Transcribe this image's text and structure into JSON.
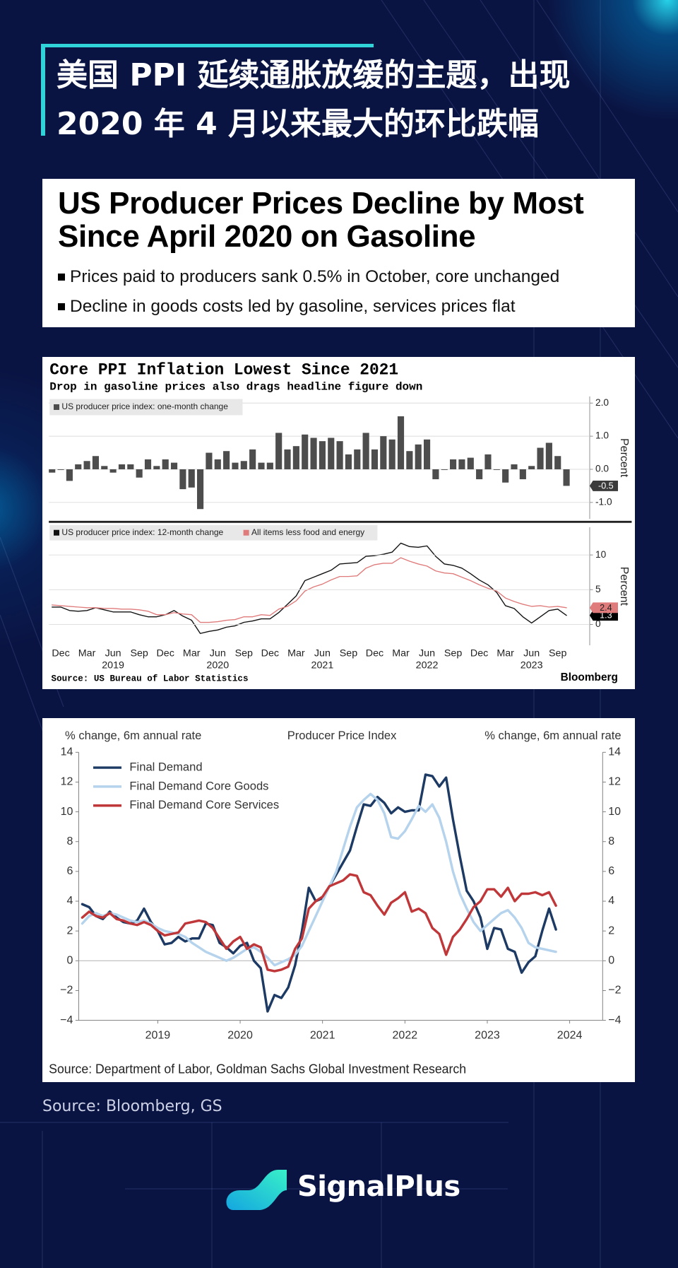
{
  "header": {
    "title_lines": [
      "美国 PPI 延续通胀放缓的主题，出现",
      "2020 年 4 月以来最大的环比跌幅"
    ]
  },
  "news": {
    "headline_lines": [
      "US Producer Prices Decline by Most",
      "Since April 2020 on Gasoline"
    ],
    "bullets": [
      "Prices paid to producers sank 0.5% in October, core unchanged",
      "Decline in goods costs led by gasoline, services prices flat"
    ]
  },
  "chart_data": [
    {
      "type": "bar",
      "title": "Core PPI Inflation Lowest Since 2021",
      "subtitle": "Drop in gasoline prices also drags headline figure down",
      "categories": [
        null,
        "Dec",
        null,
        null,
        "Mar",
        null,
        null,
        "Jun",
        null,
        null,
        "Sep",
        null,
        null,
        "Dec",
        null,
        null,
        "Mar",
        null,
        null,
        "Jun",
        null,
        null,
        "Sep",
        null,
        null,
        "Dec",
        null,
        null,
        "Mar",
        null,
        null,
        "Jun",
        null,
        null,
        "Sep",
        null,
        null,
        "Dec",
        null,
        null,
        "Mar",
        null,
        null,
        "Jun",
        null,
        null,
        "Sep",
        null,
        null,
        "Dec",
        null,
        null,
        "Mar",
        null,
        null,
        "Jun",
        null,
        null,
        "Sep",
        null
      ],
      "year_labels": [
        "2019",
        "2020",
        "2021",
        "2022",
        "2023"
      ],
      "series": [
        {
          "name": "US producer price index: one-month change",
          "color": "#4d4d4d",
          "values": [
            -0.1,
            0.0,
            -0.35,
            0.15,
            0.25,
            0.4,
            0.1,
            -0.1,
            0.15,
            0.15,
            -0.25,
            0.3,
            0.1,
            0.3,
            0.2,
            -0.6,
            -0.55,
            -1.2,
            0.5,
            0.3,
            0.55,
            0.2,
            0.25,
            0.6,
            0.2,
            0.2,
            1.1,
            0.6,
            0.7,
            1.05,
            0.95,
            0.85,
            0.95,
            0.85,
            0.45,
            0.6,
            1.1,
            0.6,
            1.0,
            0.9,
            1.6,
            0.55,
            0.75,
            0.9,
            -0.3,
            0.0,
            0.3,
            0.3,
            0.35,
            -0.3,
            0.45,
            0.0,
            -0.4,
            0.15,
            -0.3,
            0.1,
            0.65,
            0.8,
            0.4,
            -0.5
          ]
        }
      ],
      "ylim": [
        -1.5,
        2.2
      ],
      "yticks": [
        {
          "value": 2,
          "label": "2.0"
        },
        {
          "value": 1,
          "label": "1.0"
        },
        {
          "value": 0,
          "label": "0.0"
        },
        {
          "value": -1,
          "label": "-1.0"
        }
      ],
      "y_label": "Percent",
      "grid": true
    },
    {
      "type": "line",
      "series": [
        {
          "name": "US producer price index: 12-month change",
          "color": "#111111",
          "values": [
            2.5,
            2.5,
            2.0,
            1.9,
            2.0,
            2.4,
            2.1,
            1.8,
            1.8,
            1.8,
            1.4,
            1.1,
            1.1,
            1.4,
            2.0,
            1.2,
            0.6,
            -1.3,
            -1.0,
            -0.8,
            -0.4,
            -0.2,
            0.3,
            0.5,
            0.8,
            0.8,
            1.7,
            2.9,
            4.1,
            6.3,
            6.8,
            7.3,
            7.8,
            8.7,
            8.8,
            8.9,
            9.8,
            9.9,
            10.1,
            10.4,
            11.7,
            11.2,
            11.1,
            11.3,
            9.8,
            8.7,
            8.5,
            8.1,
            7.3,
            6.4,
            5.7,
            4.6,
            2.7,
            2.3,
            1.1,
            0.2,
            1.1,
            2.0,
            2.2,
            1.3
          ]
        },
        {
          "name": "All items less food and energy",
          "color": "#e07b7b",
          "values": [
            2.8,
            2.7,
            2.6,
            2.5,
            2.4,
            2.4,
            2.3,
            2.3,
            2.2,
            2.2,
            2.1,
            1.9,
            1.4,
            1.4,
            1.7,
            1.5,
            1.4,
            0.3,
            0.3,
            0.4,
            0.6,
            0.7,
            1.1,
            1.1,
            1.4,
            1.3,
            2.2,
            2.6,
            3.4,
            4.8,
            5.4,
            5.8,
            6.4,
            6.9,
            6.9,
            7.0,
            8.1,
            8.6,
            8.8,
            8.8,
            9.6,
            9.1,
            8.7,
            8.4,
            7.7,
            7.4,
            7.3,
            6.8,
            6.3,
            5.7,
            5.2,
            4.8,
            3.8,
            3.3,
            2.9,
            2.6,
            2.7,
            2.5,
            2.6,
            2.4
          ]
        }
      ],
      "ylim": [
        -3,
        14
      ],
      "yticks": [
        10,
        5,
        0
      ],
      "y_label": "Percent",
      "grid": true,
      "source": "Source: US Bureau of Labor Statistics",
      "brand": "Bloomberg"
    },
    {
      "type": "line",
      "title": "Producer Price Index",
      "y_label": "% change, 6m annual rate",
      "y2_label": "% change, 6m annual rate",
      "x": [
        2018.083,
        2018.167,
        2018.25,
        2018.333,
        2018.417,
        2018.5,
        2018.583,
        2018.667,
        2018.75,
        2018.833,
        2018.917,
        2019,
        2019.083,
        2019.167,
        2019.25,
        2019.333,
        2019.417,
        2019.5,
        2019.583,
        2019.667,
        2019.75,
        2019.833,
        2019.917,
        2020,
        2020.083,
        2020.167,
        2020.25,
        2020.333,
        2020.417,
        2020.5,
        2020.583,
        2020.667,
        2020.75,
        2020.833,
        2020.917,
        2021,
        2021.083,
        2021.167,
        2021.25,
        2021.333,
        2021.417,
        2021.5,
        2021.583,
        2021.667,
        2021.75,
        2021.833,
        2021.917,
        2022,
        2022.083,
        2022.167,
        2022.25,
        2022.333,
        2022.417,
        2022.5,
        2022.583,
        2022.667,
        2022.75,
        2022.833,
        2022.917,
        2023,
        2023.083,
        2023.167,
        2023.25,
        2023.333,
        2023.417,
        2023.5,
        2023.583,
        2023.667,
        2023.75,
        2023.833
      ],
      "series": [
        {
          "name": "Final Demand",
          "color": "#1c3a63",
          "values": [
            3.8,
            3.6,
            3.0,
            2.8,
            3.3,
            2.9,
            2.6,
            2.5,
            2.7,
            3.5,
            2.6,
            2.0,
            1.1,
            1.2,
            1.6,
            1.3,
            1.5,
            1.5,
            2.5,
            2.4,
            1.2,
            0.9,
            0.5,
            1.0,
            1.2,
            0.0,
            -0.5,
            -3.4,
            -2.3,
            -2.5,
            -1.8,
            -0.3,
            2.0,
            4.9,
            4.0,
            4.2,
            5.0,
            5.8,
            6.6,
            7.4,
            9.0,
            10.5,
            10.4,
            11.0,
            10.6,
            9.9,
            10.3,
            10.0,
            10.1,
            10.1,
            12.5,
            12.4,
            11.7,
            12.3,
            9.5,
            7.0,
            4.7,
            4.0,
            2.9,
            0.8,
            2.2,
            2.1,
            0.8,
            0.6,
            -0.8,
            -0.1,
            0.3,
            2.0,
            3.5,
            2.1
          ]
        },
        {
          "name": "Final Demand Core Goods",
          "color": "#b5d3ec",
          "values": [
            2.5,
            3.0,
            3.2,
            3.0,
            3.2,
            3.1,
            2.9,
            2.7,
            2.6,
            2.7,
            2.5,
            2.2,
            2.0,
            1.9,
            1.8,
            1.6,
            1.2,
            0.9,
            0.6,
            0.4,
            0.2,
            0.0,
            0.2,
            0.5,
            0.8,
            0.9,
            0.6,
            0.2,
            -0.3,
            -0.1,
            0.1,
            0.4,
            1.0,
            2.0,
            3.0,
            4.0,
            5.0,
            6.0,
            7.5,
            9.0,
            10.3,
            10.8,
            11.2,
            10.8,
            9.9,
            8.3,
            8.2,
            8.7,
            9.5,
            10.4,
            10.0,
            10.5,
            9.6,
            8.0,
            6.0,
            4.5,
            3.5,
            2.6,
            2.0,
            2.4,
            2.8,
            3.2,
            3.4,
            2.9,
            2.2,
            1.2,
            0.9,
            0.8,
            0.7,
            0.6
          ]
        },
        {
          "name": "Final Demand Core Services",
          "color": "#c0373a",
          "values": [
            2.9,
            3.3,
            3.0,
            2.9,
            3.2,
            2.8,
            2.7,
            2.5,
            2.4,
            2.6,
            2.4,
            2.0,
            1.7,
            1.8,
            1.9,
            2.5,
            2.6,
            2.7,
            2.6,
            2.2,
            1.5,
            0.8,
            1.3,
            1.6,
            0.8,
            1.1,
            0.9,
            -0.6,
            -0.7,
            -0.6,
            -0.4,
            0.8,
            1.5,
            3.5,
            4.0,
            4.3,
            5.0,
            5.2,
            5.4,
            5.8,
            5.7,
            4.6,
            4.4,
            3.7,
            3.1,
            3.9,
            4.2,
            4.6,
            3.3,
            3.5,
            3.2,
            2.2,
            1.8,
            0.4,
            1.6,
            2.1,
            2.8,
            3.6,
            4.0,
            4.8,
            4.8,
            4.3,
            4.9,
            4.0,
            4.5,
            4.5,
            4.6,
            4.4,
            4.6,
            3.7
          ]
        }
      ],
      "xlim": [
        2018.04,
        2024.4
      ],
      "xticks": [
        2019,
        2020,
        2021,
        2022,
        2023,
        2024
      ],
      "ylim": [
        -4,
        14
      ],
      "yticks": [
        14,
        12,
        10,
        8,
        6,
        4,
        2,
        0,
        {
          "value": -2,
          "label": "−2"
        },
        {
          "value": -4,
          "label": "−4"
        }
      ],
      "y2lim": [
        -4,
        14
      ],
      "y2ticks": [
        14,
        12,
        10,
        8,
        6,
        4,
        2,
        0,
        {
          "value": -2,
          "label": "−2"
        },
        {
          "value": -4,
          "label": "−4"
        }
      ],
      "source": "Source: Department of Labor, Goldman Sachs Global Investment Research"
    }
  ],
  "source": "Source: Bloomberg, GS",
  "brand": "SignalPlus"
}
